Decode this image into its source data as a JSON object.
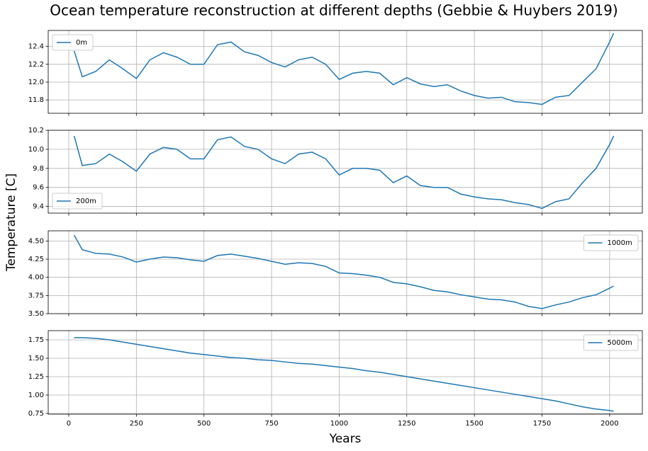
{
  "title": "Ocean temperature reconstruction at different depths (Gebbie & Huybers 2019)",
  "xlabel": "Years",
  "ylabel": "Temperature [C]",
  "chart_data": [
    {
      "type": "line",
      "legend": "upper left",
      "grid": true,
      "x": [
        20,
        50,
        100,
        150,
        200,
        250,
        300,
        350,
        400,
        450,
        500,
        550,
        600,
        650,
        700,
        750,
        800,
        850,
        900,
        950,
        1000,
        1050,
        1100,
        1150,
        1200,
        1250,
        1300,
        1350,
        1400,
        1450,
        1500,
        1550,
        1600,
        1650,
        1700,
        1750,
        1800,
        1850,
        1900,
        1950,
        2000,
        2015
      ],
      "series": [
        {
          "name": "0m",
          "color": "#1f77b4",
          "values": [
            12.35,
            12.06,
            12.12,
            12.25,
            12.15,
            12.04,
            12.25,
            12.33,
            12.28,
            12.2,
            12.2,
            12.42,
            12.45,
            12.34,
            12.3,
            12.22,
            12.17,
            12.25,
            12.28,
            12.2,
            12.03,
            12.1,
            12.12,
            12.1,
            11.97,
            12.05,
            11.98,
            11.95,
            11.97,
            11.9,
            11.85,
            11.82,
            11.83,
            11.78,
            11.77,
            11.75,
            11.83,
            11.85,
            12.0,
            12.15,
            12.45,
            12.55
          ]
        }
      ],
      "xlim": [
        -76,
        2121
      ],
      "xticks": [
        0,
        250,
        500,
        750,
        1000,
        1250,
        1500,
        1750,
        2000
      ],
      "ylim": [
        11.65,
        12.58
      ],
      "yticks": [
        11.8,
        {
          "value": 12.0,
          "label": "12.0"
        },
        12.2,
        12.4
      ]
    },
    {
      "type": "line",
      "legend": "lower left",
      "grid": true,
      "x": [
        20,
        50,
        100,
        150,
        200,
        250,
        300,
        350,
        400,
        450,
        500,
        550,
        600,
        650,
        700,
        750,
        800,
        850,
        900,
        950,
        1000,
        1050,
        1100,
        1150,
        1200,
        1250,
        1300,
        1350,
        1400,
        1450,
        1500,
        1550,
        1600,
        1650,
        1700,
        1750,
        1800,
        1850,
        1900,
        1950,
        2000,
        2015
      ],
      "series": [
        {
          "name": "200m",
          "color": "#1f77b4",
          "values": [
            10.14,
            9.83,
            9.85,
            9.95,
            9.87,
            9.77,
            9.95,
            10.02,
            10.0,
            9.9,
            9.9,
            10.1,
            10.13,
            10.03,
            10.0,
            9.9,
            9.85,
            9.95,
            9.97,
            9.9,
            9.73,
            9.8,
            9.8,
            9.78,
            9.65,
            9.72,
            9.62,
            9.6,
            9.6,
            9.53,
            9.5,
            9.48,
            9.47,
            9.44,
            9.42,
            9.38,
            9.45,
            9.48,
            9.65,
            9.8,
            10.05,
            10.14
          ]
        }
      ],
      "xlim": [
        -76,
        2121
      ],
      "xticks": [
        0,
        250,
        500,
        750,
        1000,
        1250,
        1500,
        1750,
        2000
      ],
      "ylim": [
        9.33,
        10.2
      ],
      "yticks": [
        9.4,
        9.6,
        9.8,
        {
          "value": 10.0,
          "label": "10.0"
        },
        10.2
      ]
    },
    {
      "type": "line",
      "legend": "upper right",
      "grid": true,
      "x": [
        20,
        50,
        100,
        150,
        200,
        250,
        300,
        350,
        400,
        450,
        500,
        550,
        600,
        650,
        700,
        750,
        800,
        850,
        900,
        950,
        1000,
        1050,
        1100,
        1150,
        1200,
        1250,
        1300,
        1350,
        1400,
        1450,
        1500,
        1550,
        1600,
        1650,
        1700,
        1750,
        1800,
        1850,
        1900,
        1950,
        2000,
        2015
      ],
      "series": [
        {
          "name": "1000m",
          "color": "#1f77b4",
          "values": [
            4.58,
            4.38,
            4.33,
            4.32,
            4.28,
            4.21,
            4.25,
            4.28,
            4.27,
            4.24,
            4.22,
            4.3,
            4.32,
            4.29,
            4.26,
            4.22,
            4.18,
            4.2,
            4.19,
            4.15,
            4.06,
            4.05,
            4.03,
            4.0,
            3.93,
            3.91,
            3.87,
            3.82,
            3.8,
            3.76,
            3.73,
            3.7,
            3.69,
            3.66,
            3.6,
            3.57,
            3.62,
            3.66,
            3.72,
            3.76,
            3.85,
            3.88
          ]
        }
      ],
      "xlim": [
        -76,
        2121
      ],
      "xticks": [
        0,
        250,
        500,
        750,
        1000,
        1250,
        1500,
        1750,
        2000
      ],
      "ylim": [
        3.5,
        4.64
      ],
      "yticks": [
        {
          "value": 3.5,
          "label": "3.50"
        },
        3.75,
        {
          "value": 4.0,
          "label": "4.00"
        },
        4.25,
        {
          "value": 4.5,
          "label": "4.50"
        }
      ]
    },
    {
      "type": "line",
      "legend": "upper right",
      "grid": true,
      "show_xtick_labels": true,
      "x": [
        20,
        50,
        100,
        150,
        200,
        250,
        300,
        350,
        400,
        450,
        500,
        550,
        600,
        650,
        700,
        750,
        800,
        850,
        900,
        950,
        1000,
        1050,
        1100,
        1150,
        1200,
        1250,
        1300,
        1350,
        1400,
        1450,
        1500,
        1550,
        1600,
        1650,
        1700,
        1750,
        1800,
        1850,
        1900,
        1950,
        2000,
        2015
      ],
      "series": [
        {
          "name": "5000m",
          "color": "#1f77b4",
          "values": [
            1.78,
            1.78,
            1.77,
            1.75,
            1.72,
            1.69,
            1.66,
            1.63,
            1.6,
            1.57,
            1.55,
            1.53,
            1.51,
            1.5,
            1.48,
            1.47,
            1.45,
            1.43,
            1.42,
            1.4,
            1.38,
            1.36,
            1.33,
            1.31,
            1.28,
            1.25,
            1.22,
            1.19,
            1.16,
            1.13,
            1.1,
            1.07,
            1.04,
            1.01,
            0.98,
            0.95,
            0.92,
            0.88,
            0.84,
            0.81,
            0.79,
            0.78
          ]
        }
      ],
      "xlim": [
        -76,
        2121
      ],
      "xticks": [
        0,
        250,
        500,
        750,
        1000,
        1250,
        1500,
        1750,
        2000
      ],
      "ylim": [
        0.74,
        1.875
      ],
      "yticks": [
        0.75,
        {
          "value": 1.0,
          "label": "1.00"
        },
        1.25,
        {
          "value": 1.5,
          "label": "1.50"
        },
        1.75
      ]
    }
  ]
}
